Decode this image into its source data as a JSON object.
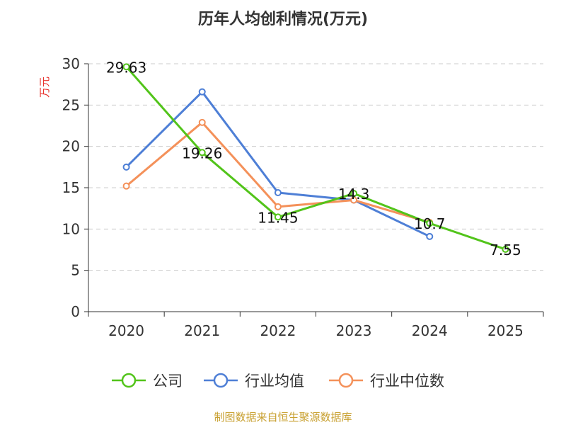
{
  "chart_data": {
    "type": "line",
    "title": "历年人均创利情况(万元)",
    "ylabel": "万元",
    "xlabel": "",
    "categories": [
      "2020",
      "2021",
      "2022",
      "2023",
      "2024",
      "2025"
    ],
    "ylim": [
      0,
      30
    ],
    "yticks": [
      0,
      5,
      10,
      15,
      20,
      25,
      30
    ],
    "grid": true,
    "legend_position": "bottom",
    "series": [
      {
        "name": "公司",
        "color": "#52c41a",
        "values": [
          29.63,
          19.26,
          11.45,
          14.3,
          10.7,
          7.55
        ],
        "data_labels": [
          "29.63",
          "19.26",
          "11.45",
          "14.3",
          "10.7",
          "7.55"
        ]
      },
      {
        "name": "行业均值",
        "color": "#4e7fd6",
        "values": [
          17.5,
          26.6,
          14.4,
          13.5,
          9.1,
          null
        ],
        "data_labels": []
      },
      {
        "name": "行业中位数",
        "color": "#f4915a",
        "values": [
          15.2,
          22.9,
          12.7,
          13.5,
          10.8,
          null
        ],
        "data_labels": []
      }
    ]
  },
  "footer": {
    "source": "制图数据来自恒生聚源数据库"
  }
}
